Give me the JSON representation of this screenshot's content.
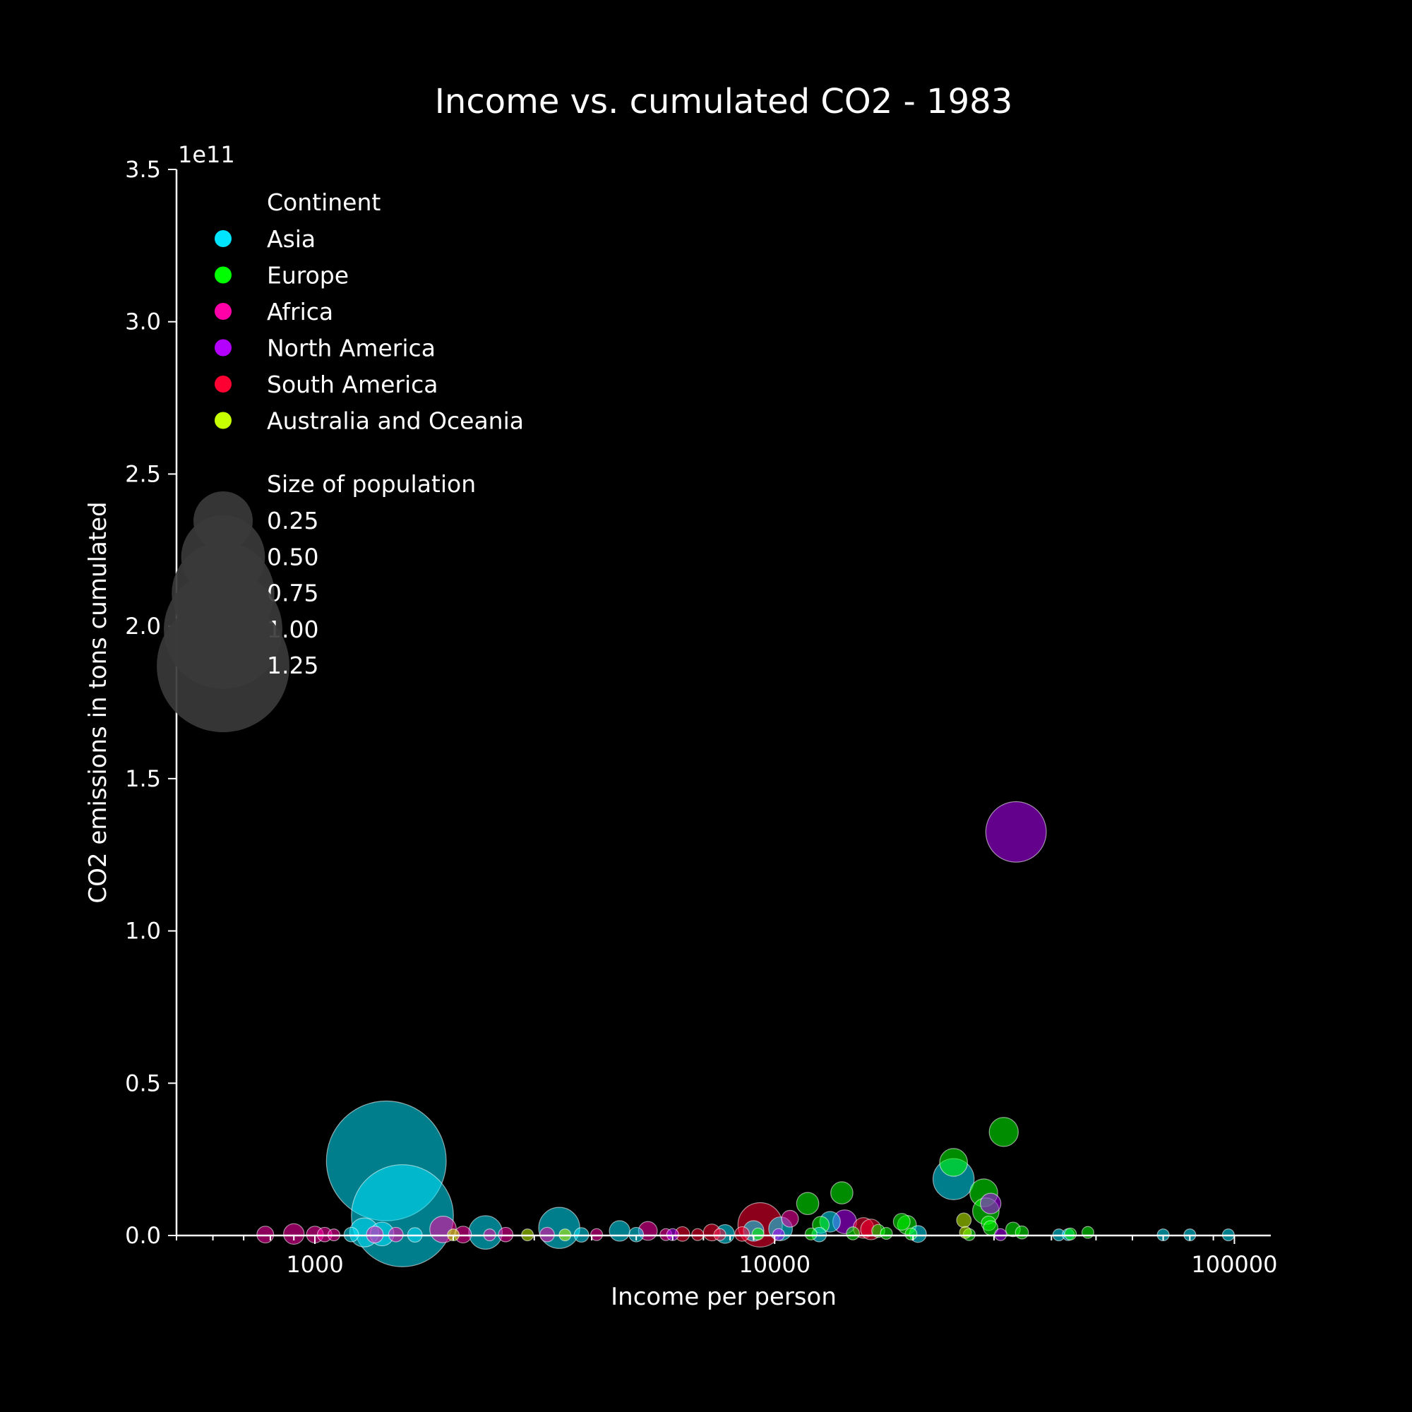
{
  "chart_data": {
    "type": "scatter",
    "title": "Income vs. cumulated CO2 - 1983",
    "xlabel": "Income per person",
    "ylabel": "CO2 emissions in tons cumulated",
    "x_scale": "log",
    "xlim": [
      500,
      120000
    ],
    "ylim": [
      0,
      350000000000
    ],
    "y_offset_label": "1e11",
    "x_tick_labels": [
      "1000",
      "10000",
      "100000"
    ],
    "y_tick_labels": [
      "0.0",
      "0.5",
      "1.0",
      "1.5",
      "2.0",
      "2.5",
      "3.0",
      "3.5"
    ],
    "grid": false,
    "legend_placement": "top-left",
    "continent_legend": {
      "title": "Continent",
      "entries": [
        {
          "name": "Asia",
          "color": "#00e5ff"
        },
        {
          "name": "Europe",
          "color": "#00ff00"
        },
        {
          "name": "Africa",
          "color": "#ff00a8"
        },
        {
          "name": "North America",
          "color": "#b400ff"
        },
        {
          "name": "South America",
          "color": "#ff0033"
        },
        {
          "name": "Australia and Oceania",
          "color": "#c8ff00"
        }
      ]
    },
    "size_legend": {
      "title": "Size of population",
      "entries": [
        {
          "label": "0.25",
          "value": 0.25
        },
        {
          "label": "0.50",
          "value": 0.5
        },
        {
          "label": "0.75",
          "value": 0.75
        },
        {
          "label": "1.00",
          "value": 1.0
        },
        {
          "label": "1.25",
          "value": 1.25
        }
      ]
    },
    "series": [
      {
        "continent": "Asia",
        "points": [
          {
            "x": 1430,
            "y": 24500000000,
            "pop": 1.02
          },
          {
            "x": 1550,
            "y": 6500000000,
            "pop": 0.74
          },
          {
            "x": 3400,
            "y": 2500000000,
            "pop": 0.12
          },
          {
            "x": 2350,
            "y": 1000000000,
            "pop": 0.08
          },
          {
            "x": 1280,
            "y": 1000000000,
            "pop": 0.06
          },
          {
            "x": 1400,
            "y": 500000000,
            "pop": 0.04
          },
          {
            "x": 24500,
            "y": 18500000000,
            "pop": 0.12
          },
          {
            "x": 10300,
            "y": 2200000000,
            "pop": 0.04
          },
          {
            "x": 13200,
            "y": 4500000000,
            "pop": 0.03
          },
          {
            "x": 4600,
            "y": 1500000000,
            "pop": 0.03
          },
          {
            "x": 7800,
            "y": 500000000,
            "pop": 0.025
          },
          {
            "x": 9000,
            "y": 1500000000,
            "pop": 0.03
          },
          {
            "x": 20500,
            "y": 500000000,
            "pop": 0.02
          },
          {
            "x": 1200,
            "y": 300000000,
            "pop": 0.015
          },
          {
            "x": 1650,
            "y": 200000000,
            "pop": 0.015
          },
          {
            "x": 5000,
            "y": 300000000,
            "pop": 0.015
          },
          {
            "x": 3800,
            "y": 200000000,
            "pop": 0.015
          },
          {
            "x": 12500,
            "y": 300000000,
            "pop": 0.015
          },
          {
            "x": 41500,
            "y": 200000000,
            "pop": 0.01
          },
          {
            "x": 43500,
            "y": 300000000,
            "pop": 0.01
          },
          {
            "x": 70000,
            "y": 200000000,
            "pop": 0.01
          },
          {
            "x": 80000,
            "y": 200000000,
            "pop": 0.01
          },
          {
            "x": 97000,
            "y": 200000000,
            "pop": 0.01
          }
        ]
      },
      {
        "continent": "Europe",
        "points": [
          {
            "x": 31500,
            "y": 34000000000,
            "pop": 0.06
          },
          {
            "x": 24500,
            "y": 24000000000,
            "pop": 0.055
          },
          {
            "x": 28500,
            "y": 14000000000,
            "pop": 0.055
          },
          {
            "x": 28800,
            "y": 8000000000,
            "pop": 0.05
          },
          {
            "x": 14000,
            "y": 14000000000,
            "pop": 0.035
          },
          {
            "x": 11800,
            "y": 10500000000,
            "pop": 0.035
          },
          {
            "x": 19400,
            "y": 3500000000,
            "pop": 0.025
          },
          {
            "x": 18900,
            "y": 4500000000,
            "pop": 0.02
          },
          {
            "x": 12600,
            "y": 3500000000,
            "pop": 0.02
          },
          {
            "x": 29200,
            "y": 4000000000,
            "pop": 0.015
          },
          {
            "x": 29500,
            "y": 2500000000,
            "pop": 0.015
          },
          {
            "x": 33000,
            "y": 2000000000,
            "pop": 0.015
          },
          {
            "x": 34500,
            "y": 1000000000,
            "pop": 0.012
          },
          {
            "x": 16800,
            "y": 1500000000,
            "pop": 0.012
          },
          {
            "x": 14800,
            "y": 700000000,
            "pop": 0.012
          },
          {
            "x": 17500,
            "y": 700000000,
            "pop": 0.01
          },
          {
            "x": 19800,
            "y": 500000000,
            "pop": 0.01
          },
          {
            "x": 48000,
            "y": 1000000000,
            "pop": 0.01
          },
          {
            "x": 44000,
            "y": 500000000,
            "pop": 0.01
          },
          {
            "x": 12000,
            "y": 500000000,
            "pop": 0.01
          },
          {
            "x": 9200,
            "y": 500000000,
            "pop": 0.01
          },
          {
            "x": 26500,
            "y": 300000000,
            "pop": 0.01
          }
        ]
      },
      {
        "continent": "Africa",
        "points": [
          {
            "x": 1900,
            "y": 2000000000,
            "pop": 0.05
          },
          {
            "x": 5300,
            "y": 1500000000,
            "pop": 0.025
          },
          {
            "x": 10800,
            "y": 5500000000,
            "pop": 0.02
          },
          {
            "x": 900,
            "y": 500000000,
            "pop": 0.03
          },
          {
            "x": 780,
            "y": 300000000,
            "pop": 0.02
          },
          {
            "x": 1000,
            "y": 300000000,
            "pop": 0.02
          },
          {
            "x": 1050,
            "y": 300000000,
            "pop": 0.015
          },
          {
            "x": 1350,
            "y": 300000000,
            "pop": 0.02
          },
          {
            "x": 1500,
            "y": 300000000,
            "pop": 0.015
          },
          {
            "x": 2100,
            "y": 300000000,
            "pop": 0.02
          },
          {
            "x": 2600,
            "y": 300000000,
            "pop": 0.015
          },
          {
            "x": 3200,
            "y": 300000000,
            "pop": 0.015
          },
          {
            "x": 4100,
            "y": 300000000,
            "pop": 0.01
          },
          {
            "x": 5800,
            "y": 300000000,
            "pop": 0.01
          },
          {
            "x": 1100,
            "y": 200000000,
            "pop": 0.01
          },
          {
            "x": 2400,
            "y": 200000000,
            "pop": 0.01
          }
        ]
      },
      {
        "continent": "North America",
        "points": [
          {
            "x": 33500,
            "y": 132500000000,
            "pop": 0.26
          },
          {
            "x": 14200,
            "y": 4500000000,
            "pop": 0.04
          },
          {
            "x": 29500,
            "y": 10500000000,
            "pop": 0.03
          },
          {
            "x": 6000,
            "y": 300000000,
            "pop": 0.01
          },
          {
            "x": 31000,
            "y": 300000000,
            "pop": 0.01
          },
          {
            "x": 10200,
            "y": 300000000,
            "pop": 0.01
          }
        ]
      },
      {
        "continent": "South America",
        "points": [
          {
            "x": 9300,
            "y": 3500000000,
            "pop": 0.14
          },
          {
            "x": 15600,
            "y": 2500000000,
            "pop": 0.03
          },
          {
            "x": 16200,
            "y": 2000000000,
            "pop": 0.03
          },
          {
            "x": 7300,
            "y": 1000000000,
            "pop": 0.02
          },
          {
            "x": 6300,
            "y": 500000000,
            "pop": 0.015
          },
          {
            "x": 8500,
            "y": 500000000,
            "pop": 0.015
          },
          {
            "x": 7600,
            "y": 300000000,
            "pop": 0.01
          },
          {
            "x": 6800,
            "y": 300000000,
            "pop": 0.01
          }
        ]
      },
      {
        "continent": "Australia and Oceania",
        "points": [
          {
            "x": 25800,
            "y": 5000000000,
            "pop": 0.015
          },
          {
            "x": 26000,
            "y": 1000000000,
            "pop": 0.01
          },
          {
            "x": 2000,
            "y": 200000000,
            "pop": 0.01
          },
          {
            "x": 3500,
            "y": 200000000,
            "pop": 0.01
          },
          {
            "x": 2900,
            "y": 200000000,
            "pop": 0.01
          }
        ]
      }
    ]
  }
}
